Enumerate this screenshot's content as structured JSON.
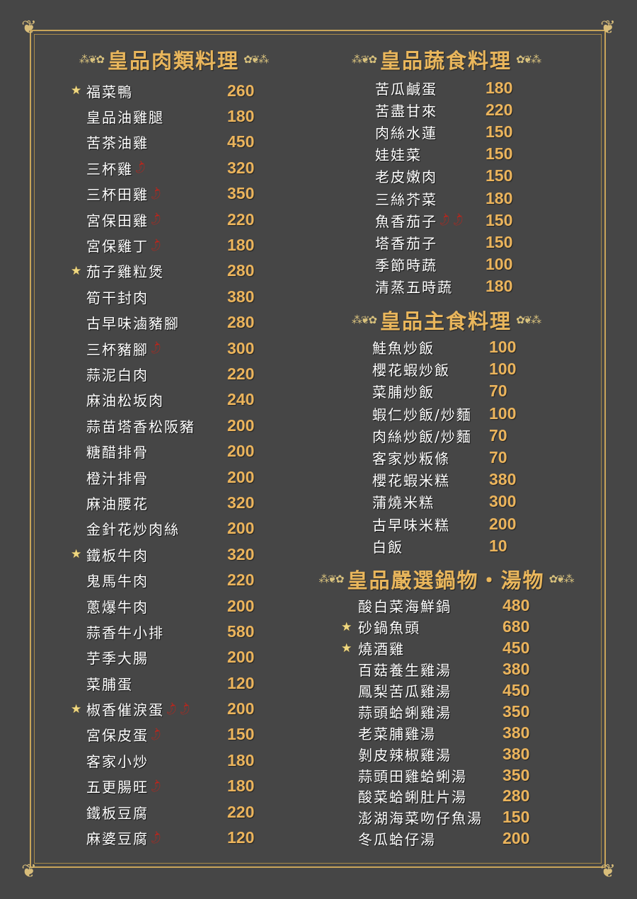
{
  "colors": {
    "background": "#464646",
    "gold": "#e9b65c",
    "border": "#c9a55a",
    "text": "#ffffff",
    "chili": "#c0241a"
  },
  "icons": {
    "star": "star-icon",
    "chili": "chili-pepper-icon",
    "ornament": "gold-sprig-ornament"
  },
  "sections": [
    {
      "title": "皇品肉類料理",
      "items": [
        {
          "name": "福菜鴨",
          "price": "260",
          "star": true,
          "chili": 0
        },
        {
          "name": "皇品油雞腿",
          "price": "180",
          "star": false,
          "chili": 0
        },
        {
          "name": "苦茶油雞",
          "price": "450",
          "star": false,
          "chili": 0
        },
        {
          "name": "三杯雞",
          "price": "320",
          "star": false,
          "chili": 1
        },
        {
          "name": "三杯田雞",
          "price": "350",
          "star": false,
          "chili": 1
        },
        {
          "name": "宮保田雞",
          "price": "220",
          "star": false,
          "chili": 1
        },
        {
          "name": "宮保雞丁",
          "price": "180",
          "star": false,
          "chili": 1
        },
        {
          "name": "茄子雞粒煲",
          "price": "280",
          "star": true,
          "chili": 0
        },
        {
          "name": "筍干封肉",
          "price": "380",
          "star": false,
          "chili": 0
        },
        {
          "name": "古早味滷豬腳",
          "price": "280",
          "star": false,
          "chili": 0
        },
        {
          "name": "三杯豬腳",
          "price": "300",
          "star": false,
          "chili": 1
        },
        {
          "name": "蒜泥白肉",
          "price": "220",
          "star": false,
          "chili": 0
        },
        {
          "name": "麻油松坂肉",
          "price": "240",
          "star": false,
          "chili": 0
        },
        {
          "name": "蒜苗塔香松阪豬",
          "price": "200",
          "star": false,
          "chili": 0
        },
        {
          "name": "糖醋排骨",
          "price": "200",
          "star": false,
          "chili": 0
        },
        {
          "name": "橙汁排骨",
          "price": "200",
          "star": false,
          "chili": 0
        },
        {
          "name": "麻油腰花",
          "price": "320",
          "star": false,
          "chili": 0
        },
        {
          "name": "金針花炒肉絲",
          "price": "200",
          "star": false,
          "chili": 0
        },
        {
          "name": "鐵板牛肉",
          "price": "320",
          "star": true,
          "chili": 0
        },
        {
          "name": "鬼馬牛肉",
          "price": "220",
          "star": false,
          "chili": 0
        },
        {
          "name": "蔥爆牛肉",
          "price": "200",
          "star": false,
          "chili": 0
        },
        {
          "name": "蒜香牛小排",
          "price": "580",
          "star": false,
          "chili": 0
        },
        {
          "name": "芋季大腸",
          "price": "200",
          "star": false,
          "chili": 0
        },
        {
          "name": "菜脯蛋",
          "price": "120",
          "star": false,
          "chili": 0
        },
        {
          "name": "椒香催淚蛋",
          "price": "200",
          "star": true,
          "chili": 2
        },
        {
          "name": "宮保皮蛋",
          "price": "150",
          "star": false,
          "chili": 1
        },
        {
          "name": "客家小炒",
          "price": "180",
          "star": false,
          "chili": 0
        },
        {
          "name": "五更腸旺",
          "price": "180",
          "star": false,
          "chili": 1
        },
        {
          "name": "鐵板豆腐",
          "price": "220",
          "star": false,
          "chili": 0
        },
        {
          "name": "麻婆豆腐",
          "price": "120",
          "star": false,
          "chili": 1
        }
      ]
    },
    {
      "title": "皇品蔬食料理",
      "items": [
        {
          "name": "苦瓜鹹蛋",
          "price": "180",
          "star": false,
          "chili": 0
        },
        {
          "name": "苦盡甘來",
          "price": "220",
          "star": false,
          "chili": 0
        },
        {
          "name": "肉絲水蓮",
          "price": "150",
          "star": false,
          "chili": 0
        },
        {
          "name": "娃娃菜",
          "price": "150",
          "star": false,
          "chili": 0
        },
        {
          "name": "老皮嫩肉",
          "price": "150",
          "star": false,
          "chili": 0
        },
        {
          "name": "三絲芥菜",
          "price": "180",
          "star": false,
          "chili": 0
        },
        {
          "name": "魚香茄子",
          "price": "150",
          "star": false,
          "chili": 2
        },
        {
          "name": "塔香茄子",
          "price": "150",
          "star": false,
          "chili": 0
        },
        {
          "name": "季節時蔬",
          "price": "100",
          "star": false,
          "chili": 0
        },
        {
          "name": "清蒸五時蔬",
          "price": "180",
          "star": false,
          "chili": 0
        }
      ]
    },
    {
      "title": "皇品主食料理",
      "items": [
        {
          "name": "鮭魚炒飯",
          "price": "100",
          "star": false,
          "chili": 0
        },
        {
          "name": "櫻花蝦炒飯",
          "price": "100",
          "star": false,
          "chili": 0
        },
        {
          "name": "菜脯炒飯",
          "price": "70",
          "star": false,
          "chili": 0
        },
        {
          "name": "蝦仁炒飯/炒麵",
          "price": "100",
          "star": false,
          "chili": 0
        },
        {
          "name": "肉絲炒飯/炒麵",
          "price": "70",
          "star": false,
          "chili": 0
        },
        {
          "name": "客家炒粄條",
          "price": "70",
          "star": false,
          "chili": 0
        },
        {
          "name": "櫻花蝦米糕",
          "price": "380",
          "star": false,
          "chili": 0
        },
        {
          "name": "蒲燒米糕",
          "price": "300",
          "star": false,
          "chili": 0
        },
        {
          "name": "古早味米糕",
          "price": "200",
          "star": false,
          "chili": 0
        },
        {
          "name": "白飯",
          "price": "10",
          "star": false,
          "chili": 0
        }
      ]
    },
    {
      "title": "皇品嚴選鍋物・湯物",
      "items": [
        {
          "name": "酸白菜海鮮鍋",
          "price": "480",
          "star": false,
          "chili": 0
        },
        {
          "name": "砂鍋魚頭",
          "price": "680",
          "star": true,
          "chili": 0
        },
        {
          "name": "燒酒雞",
          "price": "450",
          "star": true,
          "chili": 0
        },
        {
          "name": "百菇養生雞湯",
          "price": "380",
          "star": false,
          "chili": 0
        },
        {
          "name": "鳳梨苦瓜雞湯",
          "price": "450",
          "star": false,
          "chili": 0
        },
        {
          "name": "蒜頭蛤蜊雞湯",
          "price": "350",
          "star": false,
          "chili": 0
        },
        {
          "name": "老菜脯雞湯",
          "price": "380",
          "star": false,
          "chili": 0
        },
        {
          "name": "剝皮辣椒雞湯",
          "price": "380",
          "star": false,
          "chili": 0
        },
        {
          "name": "蒜頭田雞蛤蜊湯",
          "price": "350",
          "star": false,
          "chili": 0
        },
        {
          "name": "酸菜蛤蜊肚片湯",
          "price": "280",
          "star": false,
          "chili": 0
        },
        {
          "name": "澎湖海菜吻仔魚湯",
          "price": "150",
          "star": false,
          "chili": 0
        },
        {
          "name": "冬瓜蛤仔湯",
          "price": "200",
          "star": false,
          "chili": 0
        }
      ]
    }
  ]
}
